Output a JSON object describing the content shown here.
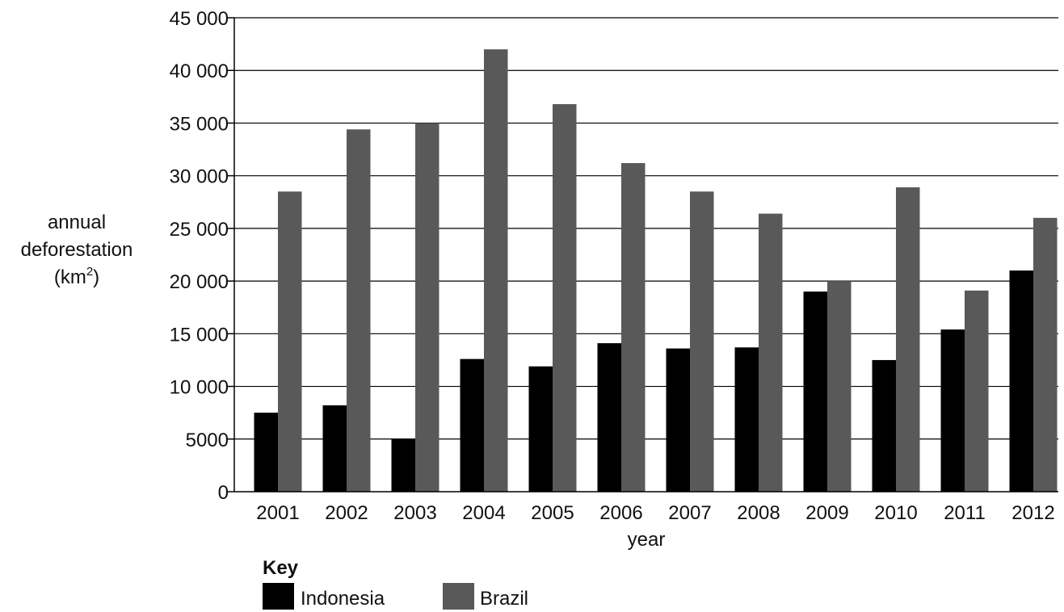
{
  "chart_data": {
    "type": "bar",
    "categories": [
      "2001",
      "2002",
      "2003",
      "2004",
      "2005",
      "2006",
      "2007",
      "2008",
      "2009",
      "2010",
      "2011",
      "2012"
    ],
    "series": [
      {
        "name": "Indonesia",
        "color": "#000000",
        "values": [
          7500,
          8200,
          5000,
          12600,
          11900,
          14100,
          13600,
          13700,
          19000,
          12500,
          15400,
          21000
        ]
      },
      {
        "name": "Brazil",
        "color": "#595959",
        "values": [
          28500,
          34400,
          35000,
          42000,
          36800,
          31200,
          28500,
          26400,
          20000,
          28900,
          19100,
          26000
        ]
      }
    ],
    "ylim": [
      0,
      45000
    ],
    "yticks": [
      0,
      5000,
      10000,
      15000,
      20000,
      25000,
      30000,
      35000,
      40000,
      45000
    ],
    "ytick_labels": [
      "0",
      "5000",
      "10 000",
      "15 000",
      "20 000",
      "25 000",
      "30 000",
      "35 000",
      "40 000",
      "45 000"
    ],
    "ylabel": {
      "line1": "annual",
      "line2": "deforestation",
      "line3_prefix": "(km",
      "line3_sup": "2",
      "line3_suffix": ")"
    },
    "xlabel": "year",
    "grid": true,
    "legend": {
      "title": "Key",
      "placement": "bottom-left"
    }
  }
}
